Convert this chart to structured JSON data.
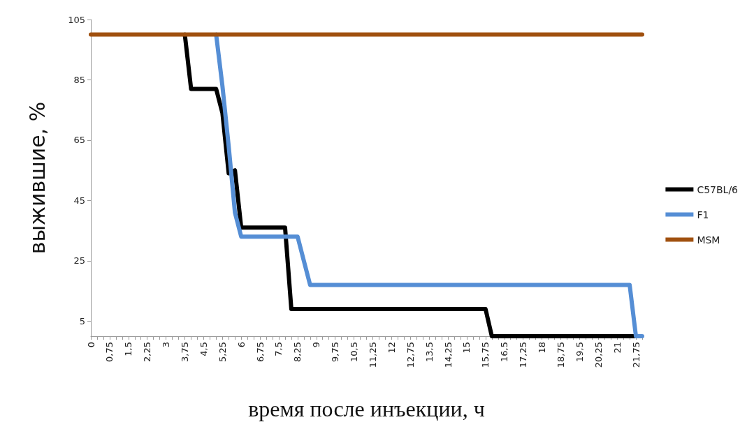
{
  "chart_data": {
    "type": "line",
    "xlabel": "время после инъекции, ч",
    "ylabel": "выжившие, %",
    "categories": [
      "0",
      null,
      null,
      "0,75",
      null,
      null,
      "1,5",
      null,
      null,
      "2,25",
      null,
      null,
      "3",
      null,
      null,
      "3,75",
      null,
      null,
      "4,5",
      null,
      null,
      "5,25",
      null,
      null,
      "6",
      null,
      null,
      "6,75",
      null,
      null,
      "7,5",
      null,
      null,
      "8,25",
      null,
      null,
      "9",
      null,
      null,
      "9,75",
      null,
      null,
      "10,5",
      null,
      null,
      "11,25",
      null,
      null,
      "12",
      null,
      null,
      "12,75",
      null,
      null,
      "13,5",
      null,
      null,
      "14,25",
      null,
      null,
      "15",
      null,
      null,
      "15,75",
      null,
      null,
      "16,5",
      null,
      null,
      "17,25",
      null,
      null,
      "18",
      null,
      null,
      "18,75",
      null,
      null,
      "19,5",
      null,
      null,
      "20,25",
      null,
      null,
      "21",
      null,
      null,
      "21,75",
      null
    ],
    "series": [
      {
        "name": "C57BL/6",
        "color": "#000000",
        "values": [
          null,
          null,
          null,
          null,
          null,
          null,
          null,
          null,
          null,
          null,
          null,
          null,
          null,
          null,
          null,
          100,
          82,
          82,
          82,
          82,
          82,
          74,
          54,
          55,
          36,
          36,
          36,
          36,
          36,
          36,
          36,
          36,
          9,
          9,
          9,
          9,
          9,
          9,
          9,
          9,
          9,
          9,
          9,
          9,
          9,
          9,
          9,
          9,
          9,
          9,
          9,
          9,
          9,
          9,
          9,
          9,
          9,
          9,
          9,
          9,
          9,
          9,
          9,
          9,
          0,
          0,
          0,
          0,
          0,
          0,
          0,
          0,
          0,
          0,
          0,
          0,
          0,
          0,
          0,
          0,
          0,
          0,
          0,
          0,
          0,
          0,
          0,
          0,
          null
        ]
      },
      {
        "name": "F1",
        "color": "#558ed5",
        "values": [
          null,
          null,
          null,
          null,
          null,
          null,
          null,
          null,
          null,
          null,
          null,
          null,
          null,
          null,
          null,
          null,
          null,
          null,
          null,
          null,
          100,
          83,
          63,
          41,
          33,
          33,
          33,
          33,
          33,
          33,
          33,
          33,
          33,
          33,
          25,
          17,
          17,
          17,
          17,
          17,
          17,
          17,
          17,
          17,
          17,
          17,
          17,
          17,
          17,
          17,
          17,
          17,
          17,
          17,
          17,
          17,
          17,
          17,
          17,
          17,
          17,
          17,
          17,
          17,
          17,
          17,
          17,
          17,
          17,
          17,
          17,
          17,
          17,
          17,
          17,
          17,
          17,
          17,
          17,
          17,
          17,
          17,
          17,
          17,
          17,
          17,
          17,
          0,
          0
        ]
      },
      {
        "name": "MSM",
        "color": "#a0500f",
        "values": [
          100,
          100,
          100,
          100,
          100,
          100,
          100,
          100,
          100,
          100,
          100,
          100,
          100,
          100,
          100,
          100,
          100,
          100,
          100,
          100,
          100,
          100,
          100,
          100,
          100,
          100,
          100,
          100,
          100,
          100,
          100,
          100,
          100,
          100,
          100,
          100,
          100,
          100,
          100,
          100,
          100,
          100,
          100,
          100,
          100,
          100,
          100,
          100,
          100,
          100,
          100,
          100,
          100,
          100,
          100,
          100,
          100,
          100,
          100,
          100,
          100,
          100,
          100,
          100,
          100,
          100,
          100,
          100,
          100,
          100,
          100,
          100,
          100,
          100,
          100,
          100,
          100,
          100,
          100,
          100,
          100,
          100,
          100,
          100,
          100,
          100,
          100,
          100,
          100
        ]
      }
    ],
    "ylim": [
      0,
      105
    ],
    "yticks": [
      5,
      25,
      45,
      65,
      85,
      105
    ],
    "grid": false,
    "legend": "right",
    "marker": "none",
    "line_style": "solid"
  }
}
